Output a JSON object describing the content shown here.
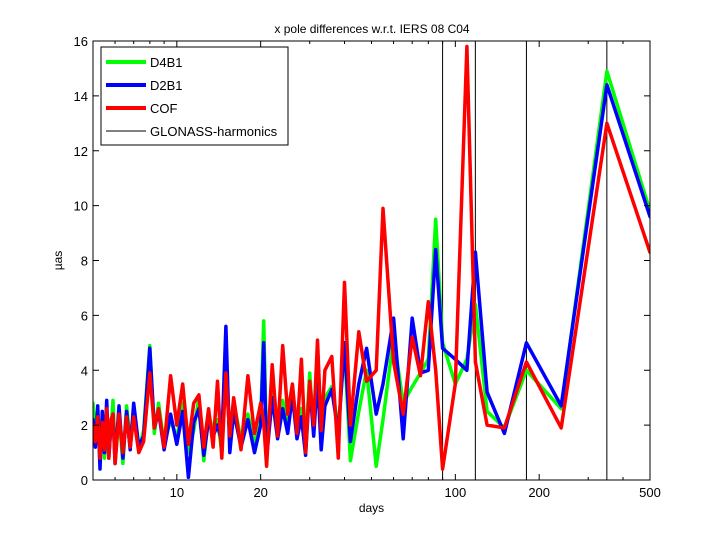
{
  "chart_data": {
    "type": "line",
    "title": "x pole differences w.r.t. IERS 08 C04",
    "xlabel": "days",
    "ylabel": "µas",
    "xscale": "log",
    "xlim": [
      5,
      500
    ],
    "ylim": [
      0,
      16
    ],
    "xticks": [
      10,
      20,
      100,
      200,
      500
    ],
    "yticks": [
      0,
      2,
      4,
      6,
      8,
      10,
      12,
      14,
      16
    ],
    "grid": false,
    "legend_position": "top-left",
    "vlines": {
      "name": "GLONASS-harmonics",
      "color": "#000000",
      "x": [
        90,
        118,
        180,
        350
      ]
    },
    "series": [
      {
        "name": "D4B1",
        "color": "#00ff00",
        "x": [
          5.0,
          5.1,
          5.2,
          5.3,
          5.4,
          5.5,
          5.6,
          5.7,
          5.8,
          5.9,
          6.0,
          6.2,
          6.4,
          6.6,
          6.8,
          7.0,
          7.3,
          7.6,
          8.0,
          8.3,
          8.6,
          9.0,
          9.5,
          10.0,
          10.5,
          11.0,
          11.5,
          12.0,
          12.5,
          13.0,
          13.5,
          14.0,
          14.5,
          15.0,
          15.5,
          16.0,
          17.0,
          18.0,
          19.0,
          20.0,
          20.5,
          21.0,
          22.0,
          23.0,
          24.0,
          25.0,
          26.0,
          27.0,
          28.0,
          29.0,
          30.0,
          31.0,
          32.0,
          33.0,
          34.0,
          36.0,
          38.0,
          40.0,
          42.0,
          45.0,
          48.0,
          52.0,
          55.0,
          60.0,
          65.0,
          70.0,
          75.0,
          80.0,
          85.0,
          90.0,
          100.0,
          110.0,
          118.0,
          130.0,
          150.0,
          180.0,
          240.0,
          350.0,
          500.0
        ],
        "y": [
          2.8,
          1.5,
          2.5,
          1.0,
          2.2,
          0.8,
          2.6,
          1.3,
          1.8,
          2.9,
          1.0,
          2.4,
          0.6,
          2.7,
          1.4,
          2.5,
          1.1,
          1.8,
          4.9,
          1.7,
          2.8,
          1.3,
          2.2,
          1.5,
          2.8,
          1.0,
          1.8,
          3.0,
          0.7,
          2.4,
          1.8,
          2.2,
          1.0,
          4.9,
          1.3,
          2.8,
          1.5,
          2.4,
          1.3,
          2.2,
          5.8,
          1.2,
          3.2,
          1.7,
          2.9,
          2.0,
          3.4,
          1.8,
          2.6,
          1.3,
          3.9,
          1.9,
          4.1,
          1.4,
          3.0,
          3.4,
          1.9,
          4.8,
          0.7,
          2.5,
          4.0,
          0.5,
          2.2,
          5.2,
          2.8,
          3.4,
          3.9,
          4.4,
          9.5,
          5.0,
          3.5,
          4.4,
          6.4,
          2.5,
          1.9,
          4.0,
          2.6,
          14.9,
          9.8
        ]
      },
      {
        "name": "D2B1",
        "color": "#0000ff",
        "x": [
          5.0,
          5.1,
          5.2,
          5.3,
          5.4,
          5.5,
          5.6,
          5.7,
          5.8,
          5.9,
          6.0,
          6.2,
          6.4,
          6.6,
          6.8,
          7.0,
          7.3,
          7.6,
          8.0,
          8.3,
          8.6,
          9.0,
          9.5,
          10.0,
          10.5,
          11.0,
          11.5,
          12.0,
          12.5,
          13.0,
          13.5,
          14.0,
          14.5,
          15.0,
          15.5,
          16.0,
          17.0,
          18.0,
          19.0,
          20.0,
          20.5,
          21.0,
          22.0,
          23.0,
          24.0,
          25.0,
          26.0,
          27.0,
          28.0,
          29.0,
          30.0,
          31.0,
          32.0,
          33.0,
          34.0,
          36.0,
          38.0,
          40.0,
          42.0,
          45.0,
          48.0,
          52.0,
          55.0,
          60.0,
          65.0,
          70.0,
          75.0,
          80.0,
          85.0,
          90.0,
          100.0,
          110.0,
          118.0,
          130.0,
          150.0,
          180.0,
          240.0,
          350.0,
          500.0
        ],
        "y": [
          2.2,
          1.2,
          2.7,
          0.4,
          2.5,
          1.0,
          2.9,
          0.8,
          2.0,
          2.4,
          0.6,
          2.7,
          0.8,
          2.5,
          1.1,
          2.8,
          1.2,
          1.6,
          4.8,
          1.9,
          2.5,
          1.1,
          2.4,
          1.3,
          2.5,
          0.1,
          2.1,
          2.6,
          0.9,
          2.2,
          1.6,
          2.0,
          1.4,
          5.6,
          1.0,
          2.5,
          1.2,
          2.2,
          1.0,
          2.0,
          5.0,
          0.8,
          3.0,
          1.5,
          2.6,
          1.7,
          3.1,
          1.5,
          2.3,
          0.9,
          3.5,
          1.6,
          3.8,
          1.1,
          2.7,
          3.3,
          1.7,
          5.0,
          1.4,
          3.5,
          4.8,
          2.4,
          3.5,
          5.9,
          1.5,
          5.9,
          3.9,
          4.0,
          8.4,
          4.8,
          4.4,
          4.0,
          8.3,
          3.2,
          1.7,
          5.0,
          2.7,
          14.4,
          9.6
        ]
      },
      {
        "name": "COF",
        "color": "#ff0000",
        "x": [
          5.0,
          5.1,
          5.2,
          5.3,
          5.4,
          5.5,
          5.6,
          5.7,
          5.8,
          5.9,
          6.0,
          6.2,
          6.4,
          6.6,
          6.8,
          7.0,
          7.3,
          7.6,
          8.0,
          8.3,
          8.6,
          9.0,
          9.5,
          10.0,
          10.5,
          11.0,
          11.5,
          12.0,
          12.5,
          13.0,
          13.5,
          14.0,
          14.5,
          15.0,
          15.5,
          16.0,
          17.0,
          18.0,
          19.0,
          20.0,
          20.5,
          21.0,
          22.0,
          23.0,
          24.0,
          25.0,
          26.0,
          27.0,
          28.0,
          29.0,
          30.0,
          31.0,
          32.0,
          33.0,
          34.0,
          36.0,
          38.0,
          40.0,
          42.0,
          45.0,
          48.0,
          52.0,
          55.0,
          60.0,
          65.0,
          70.0,
          75.0,
          80.0,
          85.0,
          90.0,
          100.0,
          110.0,
          118.0,
          130.0,
          150.0,
          180.0,
          240.0,
          350.0,
          500.0
        ],
        "y": [
          2.0,
          1.4,
          2.3,
          0.8,
          2.1,
          1.1,
          2.6,
          0.8,
          2.2,
          2.4,
          0.6,
          2.4,
          1.0,
          2.3,
          1.2,
          2.3,
          1.0,
          1.4,
          3.9,
          1.9,
          2.6,
          1.2,
          3.8,
          2.0,
          3.5,
          1.3,
          2.8,
          3.1,
          1.2,
          2.6,
          1.2,
          3.6,
          0.8,
          3.9,
          1.6,
          3.0,
          1.1,
          3.8,
          1.7,
          2.8,
          2.1,
          0.5,
          4.2,
          1.6,
          4.9,
          2.4,
          3.5,
          1.7,
          4.4,
          1.0,
          3.6,
          2.0,
          5.1,
          1.8,
          4.0,
          4.5,
          0.8,
          7.2,
          2.0,
          5.4,
          3.6,
          4.0,
          9.9,
          4.3,
          2.4,
          5.2,
          3.8,
          6.5,
          4.0,
          0.4,
          3.5,
          15.8,
          4.3,
          2.0,
          1.9,
          4.3,
          1.9,
          13.0,
          8.3
        ]
      }
    ]
  }
}
